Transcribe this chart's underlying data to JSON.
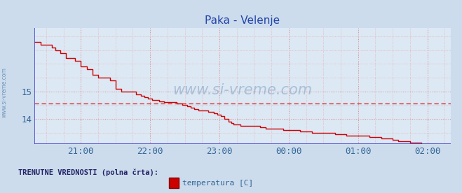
{
  "title": "Paka - Velenje",
  "bg_color": "#ccdcec",
  "plot_bg_color": "#dce8f4",
  "line_color": "#cc0000",
  "blue_line_color": "#4444cc",
  "grid_minor_color": "#e8aaaa",
  "grid_major_color": "#dd8888",
  "tick_color": "#336699",
  "title_color": "#2244aa",
  "watermark_color": "#336699",
  "legend_text": "temperatura [C]",
  "legend_label": "TRENUTNE VREDNOSTI (polna črta):",
  "yticks": [
    14,
    15
  ],
  "ylim": [
    13.1,
    17.3
  ],
  "xlim_start": 20,
  "xlim_end": 380,
  "x_tick_positions": [
    60,
    120,
    180,
    240,
    300,
    360
  ],
  "x_tick_labels": [
    "21:00",
    "22:00",
    "23:00",
    "00:00",
    "01:00",
    "02:00"
  ],
  "dashed_line_y": 14.55,
  "temperature_data": [
    [
      20,
      16.8
    ],
    [
      25,
      16.7
    ],
    [
      30,
      16.7
    ],
    [
      35,
      16.6
    ],
    [
      38,
      16.5
    ],
    [
      42,
      16.4
    ],
    [
      47,
      16.2
    ],
    [
      55,
      16.1
    ],
    [
      60,
      15.9
    ],
    [
      65,
      15.8
    ],
    [
      70,
      15.6
    ],
    [
      75,
      15.5
    ],
    [
      80,
      15.5
    ],
    [
      85,
      15.4
    ],
    [
      90,
      15.1
    ],
    [
      95,
      15.0
    ],
    [
      100,
      15.0
    ],
    [
      105,
      15.0
    ],
    [
      108,
      14.9
    ],
    [
      112,
      14.85
    ],
    [
      115,
      14.8
    ],
    [
      118,
      14.75
    ],
    [
      122,
      14.7
    ],
    [
      125,
      14.7
    ],
    [
      128,
      14.65
    ],
    [
      132,
      14.6
    ],
    [
      135,
      14.6
    ],
    [
      138,
      14.6
    ],
    [
      143,
      14.55
    ],
    [
      148,
      14.5
    ],
    [
      152,
      14.45
    ],
    [
      155,
      14.4
    ],
    [
      158,
      14.35
    ],
    [
      162,
      14.3
    ],
    [
      165,
      14.3
    ],
    [
      170,
      14.25
    ],
    [
      175,
      14.2
    ],
    [
      178,
      14.15
    ],
    [
      181,
      14.1
    ],
    [
      184,
      14.0
    ],
    [
      188,
      13.9
    ],
    [
      190,
      13.85
    ],
    [
      192,
      13.8
    ],
    [
      195,
      13.8
    ],
    [
      198,
      13.75
    ],
    [
      200,
      13.75
    ],
    [
      210,
      13.75
    ],
    [
      215,
      13.7
    ],
    [
      220,
      13.65
    ],
    [
      225,
      13.65
    ],
    [
      230,
      13.65
    ],
    [
      235,
      13.6
    ],
    [
      240,
      13.6
    ],
    [
      245,
      13.6
    ],
    [
      250,
      13.55
    ],
    [
      255,
      13.55
    ],
    [
      260,
      13.5
    ],
    [
      265,
      13.5
    ],
    [
      270,
      13.5
    ],
    [
      275,
      13.5
    ],
    [
      280,
      13.45
    ],
    [
      285,
      13.45
    ],
    [
      290,
      13.4
    ],
    [
      295,
      13.4
    ],
    [
      300,
      13.4
    ],
    [
      305,
      13.4
    ],
    [
      310,
      13.35
    ],
    [
      315,
      13.35
    ],
    [
      320,
      13.3
    ],
    [
      325,
      13.3
    ],
    [
      330,
      13.25
    ],
    [
      335,
      13.2
    ],
    [
      340,
      13.2
    ],
    [
      345,
      13.15
    ],
    [
      350,
      13.15
    ],
    [
      355,
      13.1
    ],
    [
      360,
      13.1
    ],
    [
      365,
      13.1
    ],
    [
      368,
      13.1
    ]
  ]
}
